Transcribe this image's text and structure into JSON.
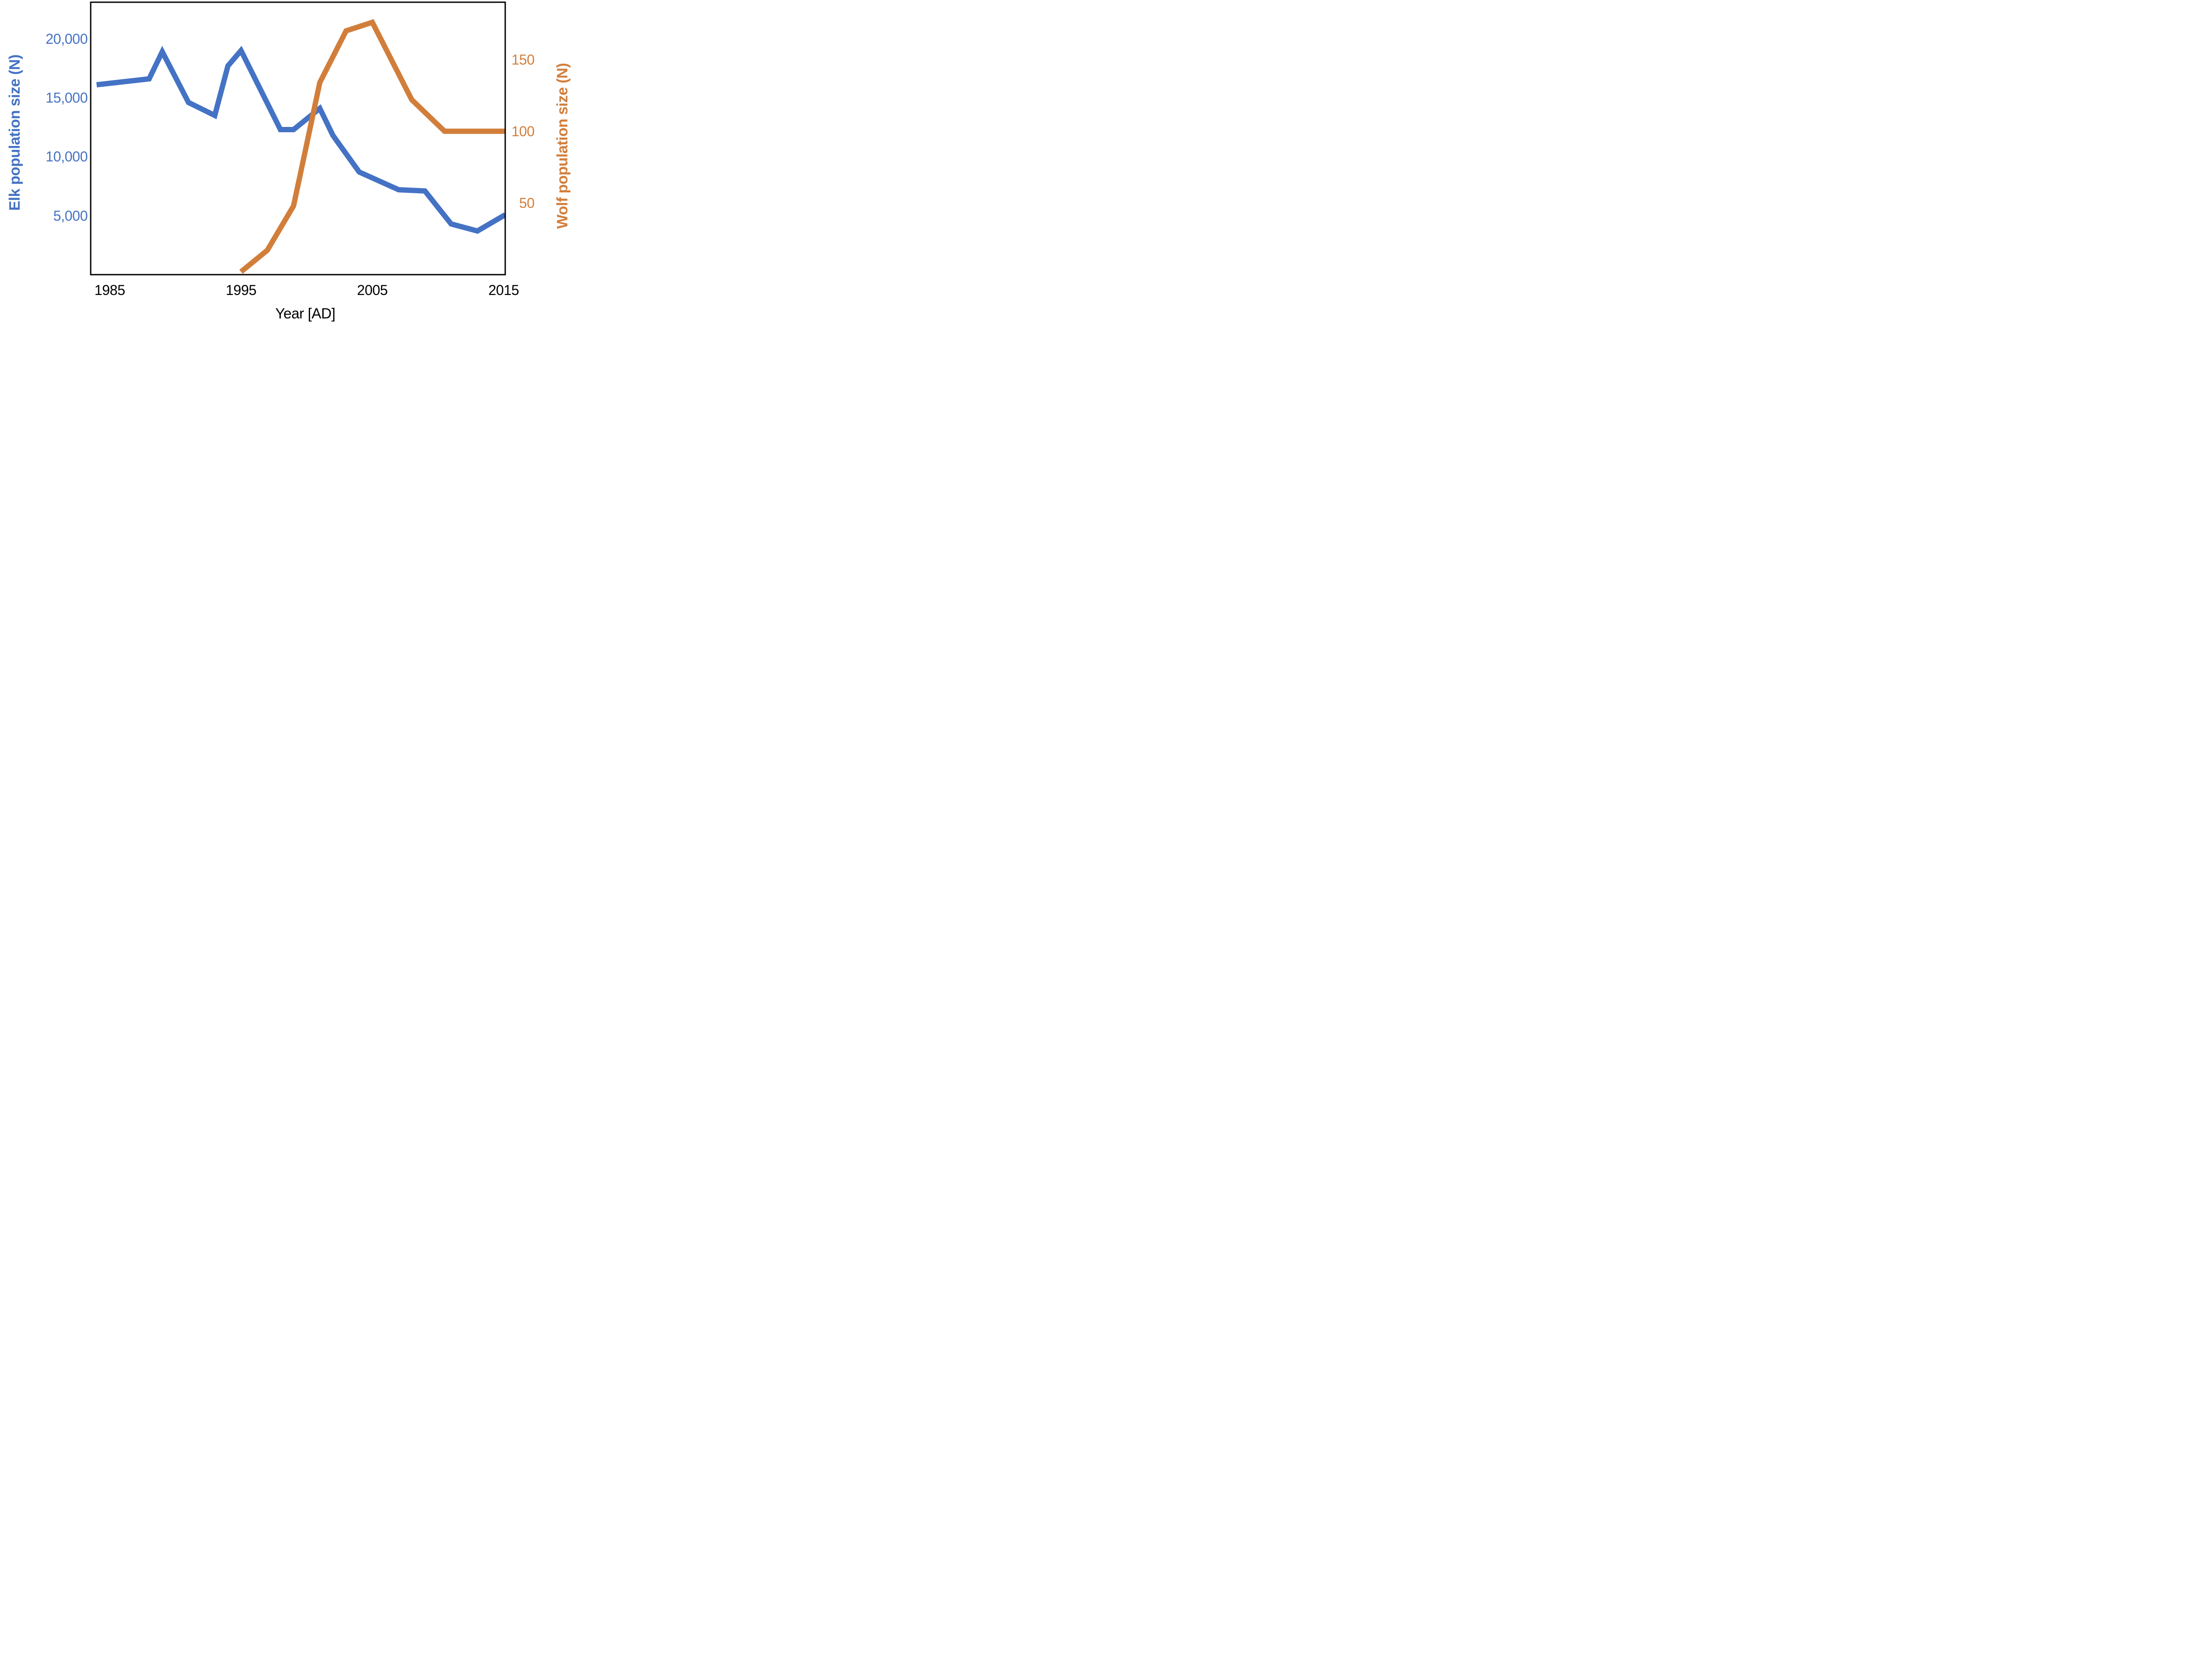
{
  "chart_data": {
    "type": "line",
    "title": "",
    "background": "#FFFFFF",
    "plot_border_color": "#000000",
    "grid": false,
    "legend": false,
    "x_axis": {
      "label": "Year [AD]",
      "tick_years": [
        "1985",
        "1995",
        "2005",
        "2015"
      ],
      "range": [
        1983.55,
        2015.12
      ]
    },
    "y_left_axis": {
      "label": "Elk population size (N)",
      "color": "#4472C4",
      "range": [
        0,
        23100
      ],
      "ticks": [
        {
          "value": 20000,
          "label": "20,000"
        },
        {
          "value": 15000,
          "label": "15,000"
        },
        {
          "value": 10000,
          "label": "10,000"
        },
        {
          "value": 5000,
          "label": "5,000"
        }
      ]
    },
    "y_right_axis": {
      "label": "Wolf population size (N)",
      "color": "#D27E3B",
      "range": [
        0,
        190
      ],
      "ticks": [
        {
          "value": 150,
          "label": "150"
        },
        {
          "value": 100,
          "label": "100"
        },
        {
          "value": 50,
          "label": "50"
        }
      ]
    },
    "series": [
      {
        "name": "Elk population",
        "axis": "left",
        "color": "#4472C4",
        "stroke_width": 12,
        "extends_to_right_border": true,
        "points": [
          [
            1984,
            16100
          ],
          [
            1988,
            16600
          ],
          [
            1989,
            18900
          ],
          [
            1991,
            14600
          ],
          [
            1993,
            13500
          ],
          [
            1994,
            17700
          ],
          [
            1995,
            19000
          ],
          [
            1998,
            12300
          ],
          [
            1999,
            12300
          ],
          [
            2001,
            14100
          ],
          [
            2002,
            11800
          ],
          [
            2004,
            8700
          ],
          [
            2007,
            7200
          ],
          [
            2009,
            7100
          ],
          [
            2011,
            4300
          ],
          [
            2013,
            3700
          ],
          [
            2015,
            5000
          ]
        ]
      },
      {
        "name": "Wolf population",
        "axis": "right",
        "color": "#D27E3B",
        "stroke_width": 12,
        "extends_to_right_border": true,
        "points": [
          [
            1995,
            2
          ],
          [
            1997,
            17
          ],
          [
            1999,
            48
          ],
          [
            2001,
            134
          ],
          [
            2003,
            170
          ],
          [
            2005,
            176
          ],
          [
            2008,
            122
          ],
          [
            2010.5,
            100
          ],
          [
            2015,
            100
          ]
        ]
      }
    ]
  }
}
